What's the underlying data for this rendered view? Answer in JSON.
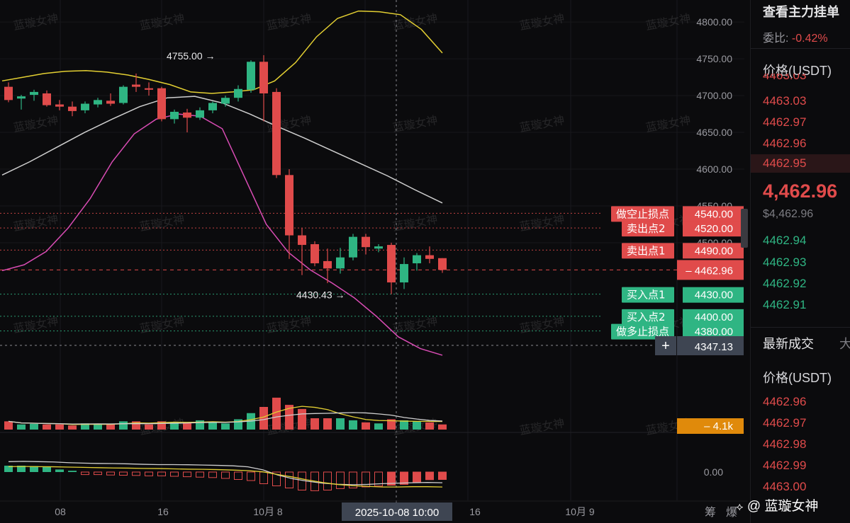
{
  "colors": {
    "up": "#2fb583",
    "down": "#e04b4b",
    "boll_upper": "#e3cf32",
    "boll_mid": "#cfcfcf",
    "boll_lower": "#d94cb4",
    "vol_ma1": "#e3cf32",
    "vol_ma2": "#cfcfcf"
  },
  "chart_data": {
    "type": "candlestick",
    "ylim": [
      4320,
      4830
    ],
    "y_ticks": [
      "4800.00",
      "4750.00",
      "4700.00",
      "4650.00",
      "4600.00",
      "4550.00",
      "4500.00"
    ],
    "x_ticks": [
      "08",
      "16",
      "10月 8",
      "16",
      "10月 9"
    ],
    "crosshair_time": "2025-10-08 10:00",
    "candles": [
      {
        "o": 4712,
        "h": 4718,
        "l": 4691,
        "c": 4694
      },
      {
        "o": 4696,
        "h": 4701,
        "l": 4681,
        "c": 4699
      },
      {
        "o": 4701,
        "h": 4708,
        "l": 4693,
        "c": 4705
      },
      {
        "o": 4703,
        "h": 4707,
        "l": 4685,
        "c": 4687
      },
      {
        "o": 4688,
        "h": 4694,
        "l": 4680,
        "c": 4685
      },
      {
        "o": 4685,
        "h": 4692,
        "l": 4672,
        "c": 4679
      },
      {
        "o": 4680,
        "h": 4692,
        "l": 4676,
        "c": 4689
      },
      {
        "o": 4688,
        "h": 4697,
        "l": 4684,
        "c": 4694
      },
      {
        "o": 4693,
        "h": 4703,
        "l": 4686,
        "c": 4689
      },
      {
        "o": 4690,
        "h": 4714,
        "l": 4688,
        "c": 4712
      },
      {
        "o": 4715,
        "h": 4730,
        "l": 4705,
        "c": 4712
      },
      {
        "o": 4710,
        "h": 4718,
        "l": 4700,
        "c": 4708
      },
      {
        "o": 4710,
        "h": 4712,
        "l": 4665,
        "c": 4668
      },
      {
        "o": 4668,
        "h": 4681,
        "l": 4662,
        "c": 4678
      },
      {
        "o": 4677,
        "h": 4682,
        "l": 4650,
        "c": 4670
      },
      {
        "o": 4670,
        "h": 4684,
        "l": 4667,
        "c": 4680
      },
      {
        "o": 4680,
        "h": 4692,
        "l": 4676,
        "c": 4690
      },
      {
        "o": 4689,
        "h": 4700,
        "l": 4685,
        "c": 4697
      },
      {
        "o": 4697,
        "h": 4714,
        "l": 4692,
        "c": 4709
      },
      {
        "o": 4708,
        "h": 4748,
        "l": 4704,
        "c": 4746
      },
      {
        "o": 4746,
        "h": 4755,
        "l": 4665,
        "c": 4703
      },
      {
        "o": 4705,
        "h": 4710,
        "l": 4588,
        "c": 4592
      },
      {
        "o": 4592,
        "h": 4600,
        "l": 4478,
        "c": 4510
      },
      {
        "o": 4510,
        "h": 4520,
        "l": 4456,
        "c": 4497
      },
      {
        "o": 4498,
        "h": 4502,
        "l": 4468,
        "c": 4472
      },
      {
        "o": 4475,
        "h": 4492,
        "l": 4445,
        "c": 4465
      },
      {
        "o": 4465,
        "h": 4493,
        "l": 4458,
        "c": 4480
      },
      {
        "o": 4480,
        "h": 4512,
        "l": 4476,
        "c": 4508
      },
      {
        "o": 4508,
        "h": 4512,
        "l": 4484,
        "c": 4494
      },
      {
        "o": 4492,
        "h": 4498,
        "l": 4487,
        "c": 4495
      },
      {
        "o": 4497,
        "h": 4500,
        "l": 4430,
        "c": 4446
      },
      {
        "o": 4446,
        "h": 4480,
        "l": 4437,
        "c": 4471
      },
      {
        "o": 4472,
        "h": 4486,
        "l": 4462,
        "c": 4483
      },
      {
        "o": 4483,
        "h": 4495,
        "l": 4472,
        "c": 4478
      },
      {
        "o": 4479,
        "h": 4479,
        "l": 4459,
        "c": 4463
      }
    ],
    "boll_upper": [
      4720,
      4725,
      4730,
      4733,
      4734,
      4732,
      4728,
      4722,
      4715,
      4705,
      4703,
      4705,
      4708,
      4720,
      4745,
      4780,
      4805,
      4815,
      4814,
      4810,
      4790,
      4758
    ],
    "boll_mid": [
      4592,
      4610,
      4630,
      4650,
      4668,
      4685,
      4697,
      4699,
      4690,
      4675,
      4658,
      4642,
      4625,
      4608,
      4591,
      4572,
      4554
    ],
    "boll_lower": [
      4462,
      4470,
      4488,
      4520,
      4560,
      4610,
      4648,
      4668,
      4675,
      4672,
      4655,
      4590,
      4525,
      4487,
      4463,
      4445,
      4425,
      4400,
      4372,
      4356,
      4347
    ],
    "volume": [
      0.4,
      0.25,
      0.28,
      0.25,
      0.25,
      0.2,
      0.3,
      0.28,
      0.24,
      0.4,
      0.4,
      0.25,
      0.4,
      0.35,
      0.35,
      0.45,
      0.35,
      0.3,
      0.5,
      0.8,
      1.1,
      1.55,
      1.2,
      1.0,
      0.55,
      0.55,
      0.55,
      0.45,
      0.35,
      0.3,
      0.5,
      0.45,
      0.4,
      0.35,
      0.25
    ],
    "macd_hist": [
      0.3,
      0.3,
      0.28,
      0.25,
      0.12,
      0.06,
      -0.12,
      -0.12,
      -0.14,
      -0.15,
      -0.16,
      -0.18,
      -0.18,
      -0.2,
      -0.22,
      -0.24,
      -0.26,
      -0.3,
      -0.35,
      -0.4,
      -0.55,
      -0.65,
      -0.75,
      -0.85,
      -0.88,
      -0.85,
      -0.78,
      -0.75,
      -0.7,
      -0.66,
      -0.62,
      -0.58,
      -0.48,
      -0.36,
      -0.35
    ],
    "macd_dif": [
      0.7,
      0.72,
      0.7,
      0.68,
      0.63,
      0.6,
      0.58,
      0.57,
      0.55,
      0.52,
      0.5,
      0.5,
      0.49,
      0.47,
      0.45,
      0.42,
      0.35,
      0.15,
      -0.2,
      -0.45,
      -0.62,
      -0.75,
      -0.82,
      -0.85,
      -0.83,
      -0.78,
      -0.75,
      -0.72,
      -0.7,
      -0.72
    ],
    "macd_dea": [
      0.65,
      0.66,
      0.65,
      0.64,
      0.62,
      0.6,
      0.58,
      0.56,
      0.55,
      0.53,
      0.52,
      0.5,
      0.48,
      0.47,
      0.45,
      0.42,
      0.38,
      0.3,
      0.12,
      -0.05,
      -0.25,
      -0.42,
      -0.55,
      -0.63,
      -0.68,
      -0.72,
      -0.72,
      -0.7,
      -0.7,
      -0.72
    ],
    "annotations": [
      {
        "text": "4755.00 →",
        "price": 4755
      },
      {
        "text": "4430.43 →",
        "price": 4430
      }
    ],
    "price_lines": [
      {
        "label": "做空止损点",
        "price": 4540,
        "value": "4540.00",
        "color": "#e04b4b"
      },
      {
        "label": "卖出点2",
        "price": 4520,
        "value": "4520.00",
        "color": "#e04b4b"
      },
      {
        "label": "卖出点1",
        "price": 4490,
        "value": "4490.00",
        "color": "#e04b4b"
      },
      {
        "label": "买入点1",
        "price": 4430,
        "value": "4430.00",
        "color": "#2fb583"
      },
      {
        "label": "买入点2",
        "price": 4400,
        "value": "4400.00",
        "color": "#2fb583"
      },
      {
        "label": "做多止损点",
        "price": 4380,
        "value": "4380.00",
        "color": "#2fb583"
      }
    ],
    "current_price": {
      "price": 4462.96,
      "value": "4462.96",
      "prefix": "–"
    },
    "hover_price": {
      "value": "4347.13",
      "icon": "+"
    },
    "volume_badge": {
      "prefix": "–",
      "value": "4.1k"
    },
    "macd_zero": "0.00",
    "right_icons": [
      "筹",
      "爆"
    ]
  },
  "side": {
    "title": "查看主力挂单",
    "ratio_label": "委比",
    "ratio_value": "-0.42%",
    "price_header": "价格(USDT)",
    "asks": [
      "4463.03",
      "4462.97",
      "4462.96",
      "4462.95"
    ],
    "ask_partial": "4463.03",
    "last_price": "4,462.96",
    "last_price_usd": "$4,462.96",
    "bids": [
      "4462.94",
      "4462.93",
      "4462.92",
      "4462.91"
    ],
    "trades_title": "最新成交",
    "trades_more": "大",
    "trades_price_header": "价格(USDT)",
    "trades": [
      "4462.96",
      "4462.97",
      "4462.98",
      "4462.99",
      "4463.00"
    ]
  },
  "watermark": "蓝璇女神",
  "brand": {
    "prefix": "@",
    "name": "蓝璇女神"
  }
}
